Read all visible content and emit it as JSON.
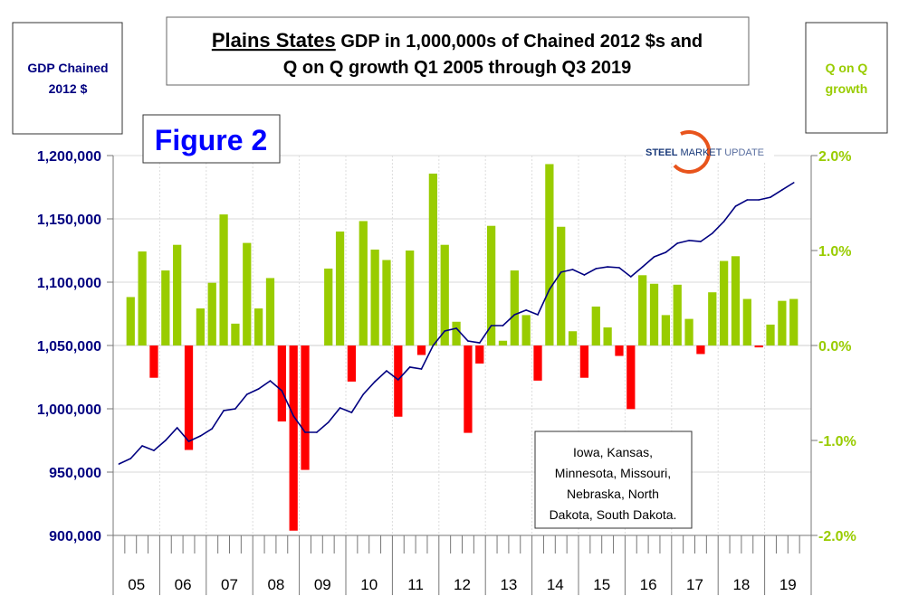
{
  "chart_data": {
    "type": "bar+line",
    "title_bold_underlined": "Plains States",
    "title_line1_rest": " GDP in 1,000,000s of Chained 2012 $s and",
    "title_line2": "Q on Q growth Q1 2005 through Q3 2019",
    "figure_label": "Figure 2",
    "left_axis_label": [
      "GDP Chained",
      "2012 $"
    ],
    "right_axis_label": [
      "Q on Q",
      "growth"
    ],
    "logo_text": {
      "bold": "STEEL",
      "mid": " MARKET",
      "light": " UPDATE"
    },
    "note": [
      "Iowa, Kansas,",
      "Minnesota, Missouri,",
      "Nebraska, North",
      "Dakota, South Dakota."
    ],
    "x_year_labels": [
      "05",
      "06",
      "07",
      "08",
      "09",
      "10",
      "11",
      "12",
      "13",
      "14",
      "15",
      "16",
      "17",
      "18",
      "19"
    ],
    "left_ylim": [
      900000,
      1200000
    ],
    "left_ticks": [
      "900,000",
      "950,000",
      "1,000,000",
      "1,050,000",
      "1,100,000",
      "1,150,000",
      "1,200,000"
    ],
    "right_ylim": [
      -2.0,
      2.0
    ],
    "right_ticks": [
      "-2.0%",
      "-1.0%",
      "0.0%",
      "1.0%",
      "2.0%"
    ],
    "grid": true,
    "colors": {
      "line": "#000080",
      "positive_bar": "#99cc00",
      "negative_bar": "#ff0000",
      "left_axis": "#000080",
      "right_axis": "#99cc00",
      "figure_label": "#0000ff"
    },
    "quarters_start": "Q1 2005",
    "quarters_end": "Q3 2019",
    "gdp": [
      956400,
      960700,
      970700,
      967100,
      975000,
      985000,
      974300,
      978600,
      984300,
      998600,
      1000000,
      1011400,
      1015700,
      1022100,
      1014300,
      994300,
      981400,
      981400,
      989300,
      1000700,
      997100,
      1011400,
      1021400,
      1030000,
      1022900,
      1032900,
      1031400,
      1050000,
      1061400,
      1063600,
      1053600,
      1052100,
      1065700,
      1065700,
      1074300,
      1077900,
      1074300,
      1094300,
      1107900,
      1110000,
      1105700,
      1110700,
      1112100,
      1111400,
      1104300,
      1112100,
      1120000,
      1123600,
      1130700,
      1132900,
      1132100,
      1138600,
      1147900,
      1160000,
      1165000,
      1165000,
      1167100,
      1172900,
      1178600
    ],
    "growth_pct": [
      null,
      0.51,
      0.99,
      -0.34,
      0.79,
      1.06,
      -1.1,
      0.39,
      0.66,
      1.38,
      0.23,
      1.08,
      0.39,
      0.71,
      -0.8,
      -1.95,
      -1.31,
      0.0,
      0.81,
      1.2,
      -0.38,
      1.31,
      1.01,
      0.9,
      -0.75,
      1.0,
      -0.1,
      1.81,
      1.06,
      0.25,
      -0.92,
      -0.19,
      1.26,
      0.05,
      0.79,
      0.32,
      -0.37,
      1.91,
      1.25,
      0.15,
      -0.34,
      0.41,
      0.19,
      -0.11,
      -0.67,
      0.74,
      0.65,
      0.32,
      0.64,
      0.28,
      -0.09,
      0.56,
      0.89,
      0.94,
      0.49,
      -0.02,
      0.22,
      0.47,
      0.49
    ]
  }
}
